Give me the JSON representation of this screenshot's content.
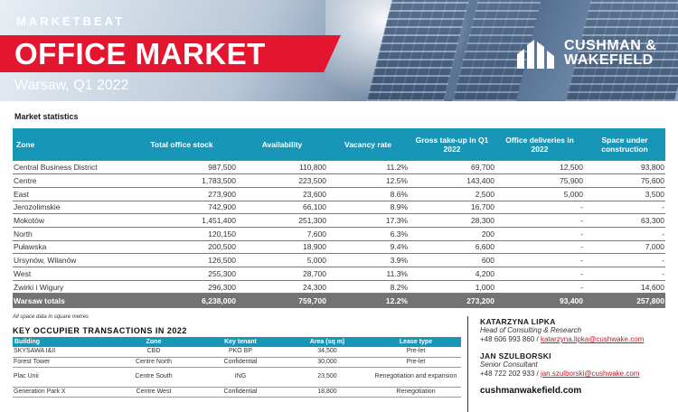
{
  "header": {
    "kicker": "MARKETBEAT",
    "title": "OFFICE MARKET",
    "subtitle": "Warsaw, Q1 2022",
    "logo_line1": "CUSHMAN &",
    "logo_line2": "WAKEFIELD",
    "colors": {
      "banner_red": "#e3152f",
      "table_blue": "#1896b8",
      "totals_gray": "#737373"
    }
  },
  "market_statistics": {
    "title": "Market statistics",
    "columns": [
      "Zone",
      "Total office stock",
      "Availability",
      "Vacancy rate",
      "Gross take-up in Q1 2022",
      "Office deliveries in 2022",
      "Space under construction"
    ],
    "rows": [
      [
        "Central Business District",
        "987,500",
        "110,800",
        "11.2%",
        "69,700",
        "12,500",
        "93,800"
      ],
      [
        "Centre",
        "1,783,500",
        "223,500",
        "12.5%",
        "143,400",
        "75,900",
        "75,600"
      ],
      [
        "East",
        "273,900",
        "23,600",
        "8.6%",
        "2,500",
        "5,000",
        "3,500"
      ],
      [
        "Jerozolimskie",
        "742,900",
        "66,100",
        "8.9%",
        "16,700",
        "-",
        "-"
      ],
      [
        "Mokotów",
        "1,451,400",
        "251,300",
        "17.3%",
        "28,300",
        "-",
        "63,300"
      ],
      [
        "North",
        "120,150",
        "7,600",
        "6.3%",
        "200",
        "-",
        "-"
      ],
      [
        "Puławska",
        "200,500",
        "18,900",
        "9.4%",
        "6,600",
        "-",
        "7,000"
      ],
      [
        "Ursynów, Wilanów",
        "126,500",
        "5,000",
        "3.9%",
        "600",
        "-",
        "-"
      ],
      [
        "West",
        "255,300",
        "28,700",
        "11.3%",
        "4,200",
        "-",
        "-"
      ],
      [
        "Żwirki i Wigury",
        "296,300",
        "24,300",
        "8.2%",
        "1,000",
        "-",
        "14,600"
      ]
    ],
    "totals": [
      "Warsaw totals",
      "6,238,000",
      "759,700",
      "12.2%",
      "273,200",
      "93,400",
      "257,800"
    ],
    "note": "All space data in square metres"
  },
  "transactions": {
    "title": "KEY OCCUPIER TRANSACTIONS IN 2022",
    "columns": [
      "Building",
      "Zone",
      "Key tenant",
      "Area (sq m)",
      "Lease type"
    ],
    "rows": [
      [
        "SKYSAWA I&II",
        "CBD",
        "PKO BP",
        "34,500",
        "Pre-let"
      ],
      [
        "Forest Tower",
        "Centre North",
        "Confidential",
        "30,000",
        "Pre-let"
      ],
      [
        "Plac Unii",
        "Centre South",
        "ING",
        "23,500",
        "Renegotiation and expansion"
      ],
      [
        "Generation Park X",
        "Centre West",
        "Confidential",
        "18,800",
        "Renegotiation"
      ]
    ]
  },
  "contacts": [
    {
      "name": "KATARZYNA LIPKA",
      "role": "Head of Consulting & Research",
      "phone": "+48 606 993 860 / ",
      "email": "katarzyna.lipka@cushwake.com"
    },
    {
      "name": "JAN SZULBORSKI",
      "role": "Senior Consultant",
      "phone": "+48 722 202 933 / ",
      "email": "jan.szulborski@cushwake.com"
    }
  ],
  "website": "cushmanwakefield.com"
}
